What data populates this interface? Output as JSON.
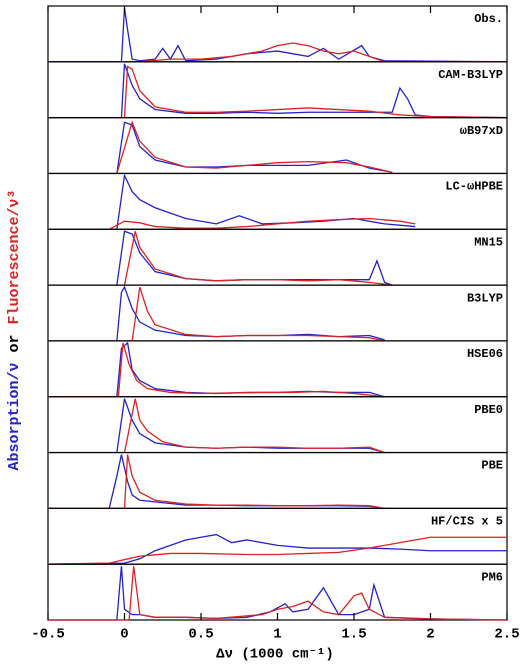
{
  "chart_data": {
    "type": "line",
    "xlabel": "Δν (1000 cm⁻¹)",
    "ylabel": [
      {
        "text": "Absorption/ν",
        "color": "#2222cc"
      },
      {
        "text": "or",
        "color": "#000000"
      },
      {
        "text": "Fluorescence/ν³",
        "color": "#dd2222"
      }
    ],
    "xlim": [
      -0.5,
      2.5
    ],
    "xticks": [
      -0.5,
      0,
      0.5,
      1,
      1.5,
      2,
      2.5
    ],
    "ylim": [
      0,
      1
    ],
    "panels": [
      {
        "label": "Obs.",
        "series": [
          {
            "color": "#2222cc",
            "x": [
              -0.5,
              -0.02,
              0,
              0.02,
              0.05,
              0.1,
              0.2,
              0.25,
              0.3,
              0.35,
              0.4,
              0.6,
              0.8,
              1.0,
              1.2,
              1.3,
              1.4,
              1.55,
              1.6,
              1.7,
              2.5
            ],
            "values": [
              0,
              0,
              1,
              0.6,
              0.05,
              0.02,
              0.05,
              0.25,
              0.05,
              0.3,
              0.02,
              0.05,
              0.15,
              0.2,
              0.1,
              0.25,
              0.05,
              0.3,
              0.1,
              0.02,
              0
            ]
          },
          {
            "color": "#dd2222",
            "x": [
              0.1,
              0.3,
              0.5,
              0.7,
              0.9,
              1.0,
              1.1,
              1.2,
              1.3,
              1.4,
              1.5,
              1.6,
              1.7,
              2.5
            ],
            "values": [
              0,
              0.05,
              0.05,
              0.1,
              0.2,
              0.3,
              0.35,
              0.3,
              0.2,
              0.15,
              0.2,
              0.1,
              0,
              0
            ]
          }
        ]
      },
      {
        "label": "CAM-B3LYP",
        "series": [
          {
            "color": "#2222cc",
            "x": [
              -0.5,
              -0.02,
              0,
              0.05,
              0.1,
              0.2,
              0.4,
              0.6,
              0.8,
              1.0,
              1.2,
              1.4,
              1.6,
              1.75,
              1.8,
              1.85,
              1.9,
              2.0,
              2.5
            ],
            "values": [
              0,
              0,
              1,
              0.6,
              0.35,
              0.15,
              0.08,
              0.08,
              0.1,
              0.08,
              0.1,
              0.1,
              0.1,
              0.1,
              0.55,
              0.35,
              0.05,
              0.02,
              0
            ]
          },
          {
            "color": "#dd2222",
            "x": [
              -0.5,
              0,
              0.02,
              0.05,
              0.1,
              0.2,
              0.4,
              0.6,
              0.8,
              1.0,
              1.2,
              1.4,
              1.6,
              1.8,
              2.0,
              2.5
            ],
            "values": [
              0,
              0,
              0.95,
              0.9,
              0.5,
              0.2,
              0.1,
              0.1,
              0.12,
              0.15,
              0.18,
              0.15,
              0.12,
              0.05,
              0.02,
              0
            ]
          }
        ]
      },
      {
        "label": "ωB97xD",
        "series": [
          {
            "color": "#2222cc",
            "x": [
              -0.05,
              0,
              0.05,
              0.1,
              0.2,
              0.4,
              0.6,
              0.8,
              1.0,
              1.2,
              1.45,
              1.6,
              1.75
            ],
            "values": [
              0,
              0.95,
              0.9,
              0.5,
              0.25,
              0.12,
              0.12,
              0.15,
              0.15,
              0.15,
              0.25,
              0.1,
              0.02
            ]
          },
          {
            "color": "#dd2222",
            "x": [
              -0.05,
              0.05,
              0.1,
              0.2,
              0.4,
              0.6,
              0.8,
              1.0,
              1.2,
              1.45,
              1.6,
              1.75
            ],
            "values": [
              0,
              0.95,
              0.6,
              0.3,
              0.12,
              0.1,
              0.15,
              0.2,
              0.22,
              0.2,
              0.12,
              0.02
            ]
          }
        ]
      },
      {
        "label": "LC-ωHPBE",
        "series": [
          {
            "color": "#2222cc",
            "x": [
              -0.05,
              0,
              0.05,
              0.1,
              0.2,
              0.4,
              0.6,
              0.75,
              0.9,
              1.1,
              1.3,
              1.5,
              1.7,
              1.9
            ],
            "values": [
              0,
              1,
              0.7,
              0.55,
              0.4,
              0.2,
              0.1,
              0.25,
              0.1,
              0.12,
              0.15,
              0.2,
              0.1,
              0.05
            ]
          },
          {
            "color": "#dd2222",
            "x": [
              -0.1,
              0,
              0.1,
              0.2,
              0.4,
              0.6,
              0.8,
              1.0,
              1.2,
              1.4,
              1.6,
              1.8,
              1.9
            ],
            "values": [
              0,
              0.15,
              0.12,
              0.05,
              0.02,
              0.02,
              0.05,
              0.1,
              0.15,
              0.18,
              0.2,
              0.15,
              0.1
            ]
          }
        ]
      },
      {
        "label": "MN15",
        "series": [
          {
            "color": "#2222cc",
            "x": [
              -0.05,
              0,
              0.05,
              0.1,
              0.2,
              0.4,
              0.6,
              0.8,
              1.0,
              1.2,
              1.4,
              1.6,
              1.65,
              1.7,
              1.75
            ],
            "values": [
              0,
              1,
              0.95,
              0.6,
              0.25,
              0.12,
              0.08,
              0.1,
              0.1,
              0.1,
              0.1,
              0.1,
              0.45,
              0.05,
              0
            ]
          },
          {
            "color": "#dd2222",
            "x": [
              0,
              0.07,
              0.1,
              0.2,
              0.4,
              0.6,
              0.8,
              1.0,
              1.2,
              1.4,
              1.6,
              1.75
            ],
            "values": [
              0,
              1,
              0.7,
              0.3,
              0.12,
              0.08,
              0.1,
              0.1,
              0.08,
              0.1,
              0.05,
              0
            ]
          }
        ]
      },
      {
        "label": "B3LYP",
        "series": [
          {
            "color": "#2222cc",
            "x": [
              -0.05,
              -0.02,
              0,
              0.05,
              0.1,
              0.2,
              0.4,
              0.6,
              0.8,
              1.0,
              1.2,
              1.4,
              1.6,
              1.7
            ],
            "values": [
              0,
              0.9,
              1,
              0.6,
              0.35,
              0.2,
              0.1,
              0.08,
              0.1,
              0.1,
              0.12,
              0.08,
              0.1,
              0.02
            ]
          },
          {
            "color": "#dd2222",
            "x": [
              -0.5,
              0.05,
              0.1,
              0.15,
              0.2,
              0.4,
              0.6,
              0.8,
              1.0,
              1.2,
              1.4,
              1.6,
              1.7
            ],
            "values": [
              0,
              0,
              1,
              0.55,
              0.3,
              0.12,
              0.08,
              0.1,
              0.1,
              0.1,
              0.08,
              0.06,
              0
            ]
          }
        ]
      },
      {
        "label": "HSE06",
        "series": [
          {
            "color": "#2222cc",
            "x": [
              -0.05,
              -0.02,
              0.02,
              0.05,
              0.1,
              0.2,
              0.4,
              0.6,
              0.8,
              1.0,
              1.2,
              1.4,
              1.6,
              1.7
            ],
            "values": [
              0,
              0.9,
              1,
              0.5,
              0.3,
              0.15,
              0.08,
              0.06,
              0.08,
              0.08,
              0.1,
              0.08,
              0.08,
              0
            ]
          },
          {
            "color": "#dd2222",
            "x": [
              -0.5,
              -0.04,
              -0.01,
              0.03,
              0.08,
              0.15,
              0.3,
              0.5,
              0.7,
              0.9,
              1.1,
              1.3,
              1.5,
              1.7
            ],
            "values": [
              0,
              0,
              1,
              0.6,
              0.3,
              0.15,
              0.08,
              0.06,
              0.07,
              0.08,
              0.08,
              0.1,
              0.06,
              0
            ]
          }
        ]
      },
      {
        "label": "PBE0",
        "series": [
          {
            "color": "#2222cc",
            "x": [
              -0.05,
              0,
              0.05,
              0.1,
              0.2,
              0.4,
              0.6,
              0.8,
              1.0,
              1.2,
              1.4,
              1.6,
              1.7
            ],
            "values": [
              0,
              1,
              0.6,
              0.35,
              0.18,
              0.1,
              0.08,
              0.1,
              0.08,
              0.08,
              0.08,
              0.08,
              0
            ]
          },
          {
            "color": "#dd2222",
            "x": [
              0,
              0.07,
              0.1,
              0.15,
              0.25,
              0.4,
              0.6,
              0.8,
              1.0,
              1.2,
              1.4,
              1.6,
              1.7
            ],
            "values": [
              0,
              1,
              0.6,
              0.4,
              0.2,
              0.1,
              0.08,
              0.1,
              0.1,
              0.08,
              0.08,
              0.1,
              0
            ]
          }
        ]
      },
      {
        "label": "PBE",
        "series": [
          {
            "color": "#2222cc",
            "x": [
              -0.1,
              -0.05,
              -0.02,
              0.02,
              0.05,
              0.1,
              0.2,
              0.4,
              0.6,
              0.8,
              1.0,
              1.2,
              1.4,
              1.6,
              1.7
            ],
            "values": [
              0,
              0.6,
              1,
              0.5,
              0.25,
              0.15,
              0.12,
              0.06,
              0.06,
              0.05,
              0.05,
              0.05,
              0.05,
              0.04,
              0
            ]
          },
          {
            "color": "#dd2222",
            "x": [
              -0.5,
              0,
              0.02,
              0.05,
              0.1,
              0.2,
              0.4,
              0.6,
              0.8,
              1.0,
              1.2,
              1.4,
              1.6,
              1.7
            ],
            "values": [
              0,
              0,
              1,
              0.6,
              0.3,
              0.15,
              0.08,
              0.06,
              0.06,
              0.05,
              0.05,
              0.06,
              0.05,
              0
            ]
          }
        ]
      },
      {
        "label": "HF/CIS x 5",
        "series": [
          {
            "color": "#2222cc",
            "x": [
              -0.5,
              0,
              0.1,
              0.2,
              0.3,
              0.4,
              0.5,
              0.6,
              0.7,
              0.8,
              1.0,
              1.2,
              1.4,
              1.6,
              1.8,
              2.0,
              2.2,
              2.5
            ],
            "values": [
              0,
              0.02,
              0.1,
              0.25,
              0.35,
              0.45,
              0.5,
              0.55,
              0.4,
              0.45,
              0.35,
              0.3,
              0.3,
              0.3,
              0.28,
              0.25,
              0.25,
              0.25
            ]
          },
          {
            "color": "#dd2222",
            "x": [
              -0.5,
              -0.1,
              0.1,
              0.3,
              0.5,
              0.8,
              1.0,
              1.2,
              1.4,
              1.6,
              1.8,
              2.0,
              2.2,
              2.5
            ],
            "values": [
              0,
              0.02,
              0.15,
              0.2,
              0.2,
              0.18,
              0.18,
              0.2,
              0.22,
              0.3,
              0.4,
              0.5,
              0.5,
              0.5
            ]
          }
        ]
      },
      {
        "label": "PM6",
        "series": [
          {
            "color": "#2222cc",
            "x": [
              -0.5,
              -0.05,
              -0.02,
              0,
              0.05,
              0.1,
              0.2,
              0.4,
              0.6,
              0.8,
              0.95,
              1.05,
              1.1,
              1.2,
              1.3,
              1.4,
              1.5,
              1.6,
              1.63,
              1.7,
              2.0,
              2.5
            ],
            "values": [
              0,
              0,
              1,
              0.2,
              0.1,
              0.1,
              0.05,
              0.05,
              0.03,
              0.05,
              0.15,
              0.3,
              0.15,
              0.2,
              0.6,
              0.1,
              0.1,
              0.2,
              0.65,
              0.05,
              0.02,
              0
            ]
          },
          {
            "color": "#dd2222",
            "x": [
              -0.5,
              0.03,
              0.06,
              0.1,
              0.2,
              0.4,
              0.6,
              0.9,
              1.0,
              1.1,
              1.2,
              1.3,
              1.4,
              1.5,
              1.55,
              1.6,
              1.7,
              2.0,
              2.5
            ],
            "values": [
              0,
              0,
              1,
              0.1,
              0.05,
              0.05,
              0.03,
              0.1,
              0.2,
              0.25,
              0.35,
              0.15,
              0.1,
              0.45,
              0.5,
              0.2,
              0.05,
              0.02,
              0
            ]
          }
        ]
      }
    ]
  }
}
